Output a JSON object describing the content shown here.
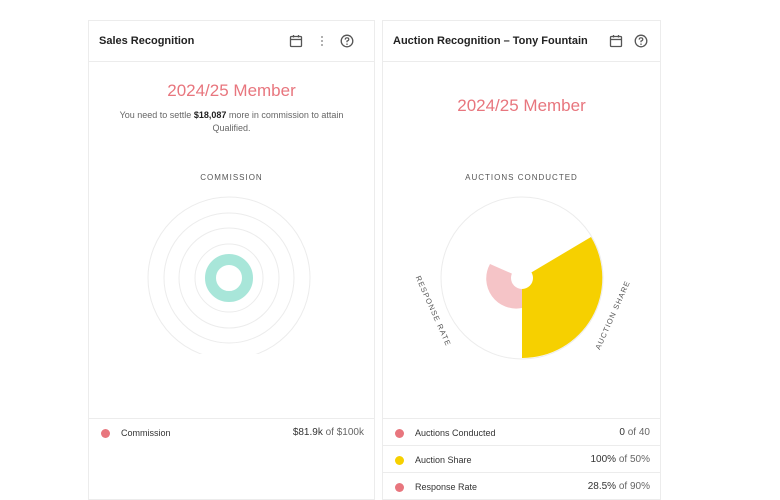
{
  "sales_card": {
    "title": "Sales Recognition",
    "member_status": "2024/25 Member",
    "message_prefix": "You need to settle ",
    "message_amount": "$18,087",
    "message_suffix": " more in commission to attain Qualified.",
    "chart_label": "COMMISSION",
    "legend": [
      {
        "label": "Commission",
        "value": "$81.9k",
        "of": " of $100k",
        "color": "#e8767e"
      }
    ]
  },
  "auction_card": {
    "title": "Auction Recognition – Tony Fountain",
    "member_status": "2024/25 Member",
    "chart_label": "AUCTIONS CONDUCTED",
    "axis_labels": {
      "response_rate": "RESPONSE RATE",
      "auction_share": "AUCTION SHARE"
    },
    "legend": [
      {
        "label": "Auctions Conducted",
        "value": "0",
        "of": " of 40",
        "color": "#e8767e"
      },
      {
        "label": "Auction Share",
        "value": "100%",
        "of": " of 50%",
        "color": "#f6d000"
      },
      {
        "label": "Response Rate",
        "value": "28.5%",
        "of": " of 90%",
        "color": "#e8767e"
      }
    ]
  },
  "icons": [
    "calendar-icon",
    "more-vertical-icon",
    "help-circle-icon"
  ],
  "colors": {
    "accent": "#e8767e",
    "teal": "#a8e6d9",
    "yellow": "#f6d000",
    "pink_light": "#f5c4c7"
  }
}
